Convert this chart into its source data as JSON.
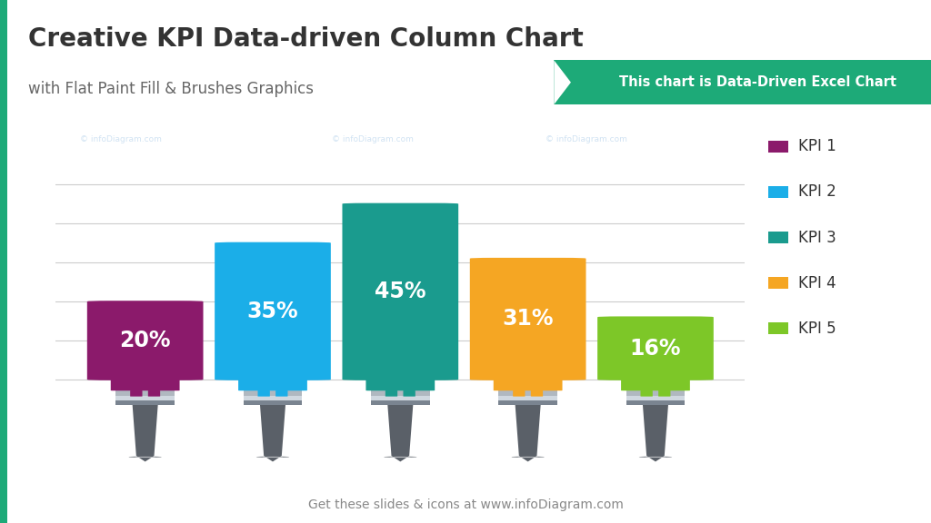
{
  "title": "Creative KPI Data-driven Column Chart",
  "subtitle": "with Flat Paint Fill & Brushes Graphics",
  "banner_text": "This chart is Data-Driven Excel Chart",
  "banner_color": "#1daa78",
  "footer_text": "Get these slides & icons at www.infoDiagram.com",
  "background_color": "#ffffff",
  "categories": [
    "KPI 1",
    "KPI 2",
    "KPI 3",
    "KPI 4",
    "KPI 5"
  ],
  "values": [
    20,
    35,
    45,
    31,
    16
  ],
  "labels": [
    "20%",
    "35%",
    "45%",
    "31%",
    "16%"
  ],
  "colors": [
    "#8B1A6B",
    "#1BAEE8",
    "#1A9B8E",
    "#F5A623",
    "#7DC728"
  ],
  "dark_colors": [
    "#6A1455",
    "#148FC0",
    "#147A70",
    "#C88400",
    "#5EA018"
  ],
  "ymax": 50,
  "left_bar_color": "#1daa78",
  "title_color": "#333333",
  "subtitle_color": "#666666",
  "grid_color": "#cccccc",
  "title_fontsize": 20,
  "subtitle_fontsize": 12,
  "label_fontsize": 17,
  "legend_fontsize": 12,
  "footer_fontsize": 10
}
